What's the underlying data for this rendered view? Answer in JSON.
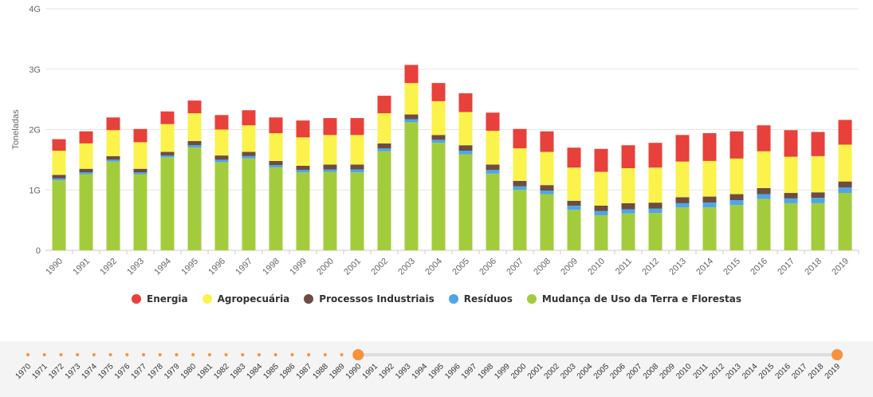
{
  "chart_data": {
    "type": "bar",
    "stacked": true,
    "ylabel": "Toneladas",
    "ylim": [
      0,
      4000000000
    ],
    "y_ticks": [
      0,
      1000000000,
      2000000000,
      3000000000,
      4000000000
    ],
    "y_tick_labels": [
      "0",
      "1G",
      "2G",
      "3G",
      "4G"
    ],
    "categories": [
      "1990",
      "1991",
      "1992",
      "1993",
      "1994",
      "1995",
      "1996",
      "1997",
      "1998",
      "1999",
      "2000",
      "2001",
      "2002",
      "2003",
      "2004",
      "2005",
      "2006",
      "2007",
      "2008",
      "2009",
      "2010",
      "2011",
      "2012",
      "2013",
      "2014",
      "2015",
      "2016",
      "2017",
      "2018",
      "2019"
    ],
    "series": [
      {
        "name": "Mudança de Uso da Terra e Florestas",
        "color": "#a3cc3c",
        "values": [
          1.16,
          1.26,
          1.47,
          1.26,
          1.54,
          1.7,
          1.46,
          1.52,
          1.37,
          1.29,
          1.3,
          1.29,
          1.64,
          2.12,
          1.78,
          1.59,
          1.27,
          1.0,
          0.93,
          0.67,
          0.58,
          0.61,
          0.62,
          0.71,
          0.71,
          0.75,
          0.85,
          0.78,
          0.78,
          0.95
        ]
      },
      {
        "name": "Resíduos",
        "color": "#4da6e8",
        "values": [
          0.03,
          0.03,
          0.03,
          0.03,
          0.03,
          0.04,
          0.04,
          0.04,
          0.04,
          0.04,
          0.04,
          0.05,
          0.05,
          0.05,
          0.05,
          0.06,
          0.06,
          0.06,
          0.06,
          0.07,
          0.07,
          0.07,
          0.07,
          0.07,
          0.08,
          0.08,
          0.08,
          0.08,
          0.09,
          0.09
        ]
      },
      {
        "name": "Processos Industriais",
        "color": "#6d4c41",
        "values": [
          0.06,
          0.06,
          0.06,
          0.06,
          0.06,
          0.07,
          0.07,
          0.07,
          0.07,
          0.07,
          0.08,
          0.08,
          0.08,
          0.08,
          0.08,
          0.09,
          0.09,
          0.09,
          0.09,
          0.08,
          0.09,
          0.1,
          0.1,
          0.1,
          0.1,
          0.1,
          0.1,
          0.09,
          0.09,
          0.1
        ]
      },
      {
        "name": "Agropecuária",
        "color": "#fbf24c",
        "values": [
          0.4,
          0.42,
          0.43,
          0.44,
          0.46,
          0.46,
          0.43,
          0.44,
          0.46,
          0.47,
          0.49,
          0.49,
          0.5,
          0.52,
          0.56,
          0.55,
          0.56,
          0.54,
          0.55,
          0.55,
          0.56,
          0.58,
          0.58,
          0.59,
          0.59,
          0.59,
          0.61,
          0.6,
          0.6,
          0.61
        ]
      },
      {
        "name": "Energia",
        "color": "#e8403b",
        "values": [
          0.19,
          0.2,
          0.21,
          0.22,
          0.21,
          0.21,
          0.24,
          0.25,
          0.26,
          0.28,
          0.28,
          0.28,
          0.29,
          0.3,
          0.3,
          0.31,
          0.3,
          0.32,
          0.34,
          0.33,
          0.38,
          0.38,
          0.41,
          0.44,
          0.46,
          0.45,
          0.43,
          0.44,
          0.4,
          0.41
        ]
      }
    ],
    "value_unit_multiplier": 1000000000,
    "legend_position": "bottom"
  },
  "legend": {
    "items": [
      {
        "label": "Energia",
        "color": "#e8403b"
      },
      {
        "label": "Agropecuária",
        "color": "#fbf24c"
      },
      {
        "label": "Processos Industriais",
        "color": "#6d4c41"
      },
      {
        "label": "Resíduos",
        "color": "#4da6e8"
      },
      {
        "label": "Mudança de Uso da Terra e Florestas",
        "color": "#a3cc3c"
      }
    ]
  },
  "timeline": {
    "years": [
      "1970",
      "1971",
      "1972",
      "1973",
      "1974",
      "1975",
      "1976",
      "1977",
      "1978",
      "1979",
      "1980",
      "1981",
      "1982",
      "1983",
      "1984",
      "1985",
      "1986",
      "1987",
      "1988",
      "1989",
      "1990",
      "1991",
      "1992",
      "1993",
      "1994",
      "1995",
      "1996",
      "1997",
      "1998",
      "1999",
      "2000",
      "2001",
      "2002",
      "2003",
      "2004",
      "2005",
      "2006",
      "2007",
      "2008",
      "2009",
      "2010",
      "2011",
      "2012",
      "2013",
      "2014",
      "2015",
      "2016",
      "2017",
      "2018",
      "2019"
    ],
    "range_start": "1990",
    "range_end": "2019",
    "accent_color": "#f7913a"
  }
}
